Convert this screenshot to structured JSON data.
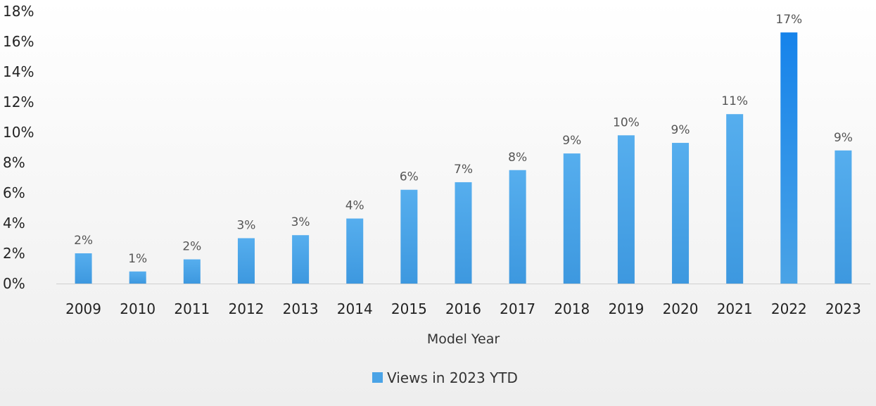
{
  "chart_data": {
    "type": "bar",
    "title": "",
    "xlabel": "Model Year",
    "ylabel": "",
    "categories": [
      "2009",
      "2010",
      "2011",
      "2012",
      "2013",
      "2014",
      "2015",
      "2016",
      "2017",
      "2018",
      "2019",
      "2020",
      "2021",
      "2022",
      "2023"
    ],
    "series": [
      {
        "name": "Views in 2023 YTD",
        "values": [
          2.0,
          0.8,
          1.6,
          3.0,
          3.2,
          4.3,
          6.2,
          6.7,
          7.5,
          8.6,
          9.8,
          9.3,
          11.2,
          16.6,
          8.8
        ],
        "data_labels": [
          "2%",
          "1%",
          "2%",
          "3%",
          "3%",
          "4%",
          "6%",
          "7%",
          "8%",
          "9%",
          "10%",
          "9%",
          "11%",
          "17%",
          "9%"
        ]
      }
    ],
    "ylim": [
      0,
      18
    ],
    "yticks": [
      0,
      2,
      4,
      6,
      8,
      10,
      12,
      14,
      16,
      18
    ],
    "ytick_labels": [
      "0%",
      "2%",
      "4%",
      "6%",
      "8%",
      "10%",
      "12%",
      "14%",
      "16%",
      "18%"
    ],
    "grid": false,
    "legend_position": "bottom",
    "colors": {
      "bar": "#4aa3e6",
      "bar_highlight": "#1a86e8",
      "axis_line": "#d0d0d0"
    }
  }
}
